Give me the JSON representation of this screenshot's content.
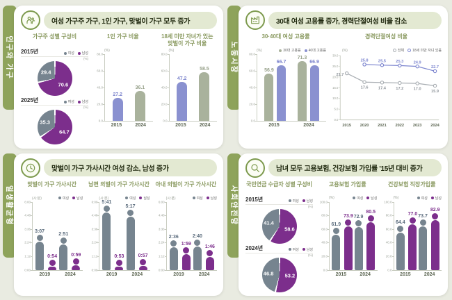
{
  "colors": {
    "page_bg": "#e9ebe1",
    "panel_bg": "#ffffff",
    "tab_green": "#8ea35b",
    "pill_bg": "#e3e9d2",
    "title_text": "#20290f",
    "chart_title": "#88985e",
    "purple": "#7c2e8c",
    "slate": "#76848f",
    "periwinkle": "#8a91d0",
    "sage": "#a9b29c",
    "line_gray": "#a8adb2",
    "line_blue": "#7d86cf",
    "axis": "#c8ccc0",
    "tick_text": "#9aa096",
    "x_label": "#5c6652",
    "icon_green": "#7d9a4e"
  },
  "panels": [
    {
      "id": "population",
      "side_label": "인구와 가구",
      "icon": "family-icon",
      "title": "여성 가구주 가구, 1인 가구, 맞벌이 가구 모두 증가",
      "chart_ids": [
        0,
        1,
        2
      ]
    },
    {
      "id": "labor",
      "side_label": "노동시장",
      "icon": "factory-icon",
      "title": "30대 여성 고용률 증가, 경력단절여성 비율 감소",
      "chart_ids": [
        3,
        4
      ]
    },
    {
      "id": "worklife",
      "side_label": "일생활균형",
      "icon": "clock-24-icon",
      "title": "맞벌이 가구 가사시간 여성 감소, 남성 증가",
      "chart_ids": [
        5,
        6,
        7
      ]
    },
    {
      "id": "safetynet",
      "side_label": "사회안전망",
      "icon": "magnifier-icon",
      "title": "남녀 모두 고용보험, 건강보험 가입률 '15년 대비 증가",
      "chart_ids": [
        8,
        9,
        10
      ]
    }
  ],
  "chart_data": [
    {
      "type": "pie_pair",
      "title": "가구주 성별 구성비",
      "unit": "(%)",
      "pies": [
        {
          "year": "2015년",
          "slices": [
            {
              "name": "여성",
              "value": 29.4,
              "label": "29.4",
              "color": "slate"
            },
            {
              "name": "남성",
              "value": 70.6,
              "label": "70.6",
              "color": "purple"
            }
          ]
        },
        {
          "year": "2025년",
          "slices": [
            {
              "name": "여성",
              "value": 35.3,
              "label": "35.3",
              "color": "slate"
            },
            {
              "name": "남성",
              "value": 64.7,
              "label": "64.7",
              "color": "purple"
            }
          ]
        }
      ]
    },
    {
      "type": "bar",
      "title": "1인 가구 비율",
      "unit": "(%)",
      "y_max": 80,
      "y_ticks": [
        "80.0",
        "60.0",
        "40.0",
        "20.0",
        "0.0"
      ],
      "bars": [
        {
          "category": "2015",
          "value": 27.2,
          "label": "27.2",
          "color": "periwinkle"
        },
        {
          "category": "2024",
          "value": 36.1,
          "label": "36.1",
          "color": "sage"
        }
      ]
    },
    {
      "type": "bar",
      "title": "18세 미만 자녀가 있는\n맞벌이 가구 비율",
      "unit": "(%)",
      "y_max": 80,
      "y_ticks": [
        "80.0",
        "60.0",
        "40.0",
        "20.0",
        "0.0"
      ],
      "bars": [
        {
          "category": "2015",
          "value": 47.2,
          "label": "47.2",
          "color": "periwinkle"
        },
        {
          "category": "2024",
          "value": 58.5,
          "label": "58.5",
          "color": "sage"
        }
      ]
    },
    {
      "type": "grouped_bar",
      "title": "30·40대 여성 고용률",
      "unit": "(%)",
      "y_max": 80,
      "y_ticks": [
        "80.0",
        "60.0",
        "40.0",
        "20.0",
        "0.0"
      ],
      "categories": [
        "2015",
        "2024"
      ],
      "series": [
        {
          "name": "30대 고용률",
          "color": "sage",
          "values": [
            56.9,
            71.3
          ],
          "labels": [
            "56.9",
            "71.3"
          ]
        },
        {
          "name": "40대 고용률",
          "color": "periwinkle",
          "values": [
            66.7,
            66.9
          ],
          "labels": [
            "66.7",
            "66.9"
          ]
        }
      ]
    },
    {
      "type": "line",
      "title": "경력단절여성 비율",
      "unit": "(%)",
      "y_max": 30,
      "y_ticks": [
        "30.0",
        "25.0",
        "20.0",
        "15.0",
        "10.0",
        "5.0",
        "0.0"
      ],
      "categories": [
        "2015",
        "2020",
        "2021",
        "2022",
        "2023",
        "2024"
      ],
      "series": [
        {
          "name": "전체",
          "color": "line_gray",
          "label_pos": "below",
          "values": [
            21.7,
            17.6,
            17.4,
            17.2,
            17.0,
            15.9
          ],
          "labels": [
            "21.7",
            "17.6",
            "17.4",
            "17.2",
            "17.0",
            "15.9"
          ]
        },
        {
          "name": "18세 미만 자녀 있음",
          "color": "line_blue",
          "label_pos": "above",
          "values": [
            null,
            25.8,
            25.5,
            25.3,
            24.9,
            22.7
          ],
          "labels": [
            null,
            "25.8",
            "25.5",
            "25.3",
            "24.9",
            "22.7"
          ]
        }
      ]
    },
    {
      "type": "person_bar",
      "title": "맞벌이 가구 가사시간",
      "unit": "(시:분)",
      "y_max": 360,
      "y_ticks": [
        "6:00",
        "4:48",
        "3:36",
        "2:24",
        "1:12",
        "0:00"
      ],
      "categories": [
        "2019",
        "2024"
      ],
      "series": [
        {
          "name": "여성",
          "color": "slate",
          "values": [
            187,
            171
          ],
          "labels": [
            "3:07",
            "2:51"
          ]
        },
        {
          "name": "남성",
          "color": "purple",
          "values": [
            54,
            59
          ],
          "labels": [
            "0:54",
            "0:59"
          ]
        }
      ]
    },
    {
      "type": "person_bar",
      "title": "남편 외벌이 가구 가사시간",
      "unit": "(시:분)",
      "y_max": 360,
      "y_ticks": [
        "6:00",
        "4:48",
        "3:36",
        "2:24",
        "1:12",
        "0:00"
      ],
      "categories": [
        "2019",
        "2024"
      ],
      "series": [
        {
          "name": "여성",
          "color": "slate",
          "values": [
            341,
            317
          ],
          "labels": [
            "5:41",
            "5:17"
          ]
        },
        {
          "name": "남성",
          "color": "purple",
          "values": [
            53,
            57
          ],
          "labels": [
            "0:53",
            "0:57"
          ]
        }
      ]
    },
    {
      "type": "person_bar",
      "title": "아내 외벌이 가구 가사시간",
      "unit": "(시:분)",
      "y_max": 360,
      "y_ticks": [
        "6:00",
        "4:48",
        "3:36",
        "2:24",
        "1:12",
        "0:00"
      ],
      "categories": [
        "2019",
        "2024"
      ],
      "series": [
        {
          "name": "여성",
          "color": "slate",
          "values": [
            156,
            160
          ],
          "labels": [
            "2:36",
            "2:40"
          ]
        },
        {
          "name": "남성",
          "color": "purple",
          "values": [
            119,
            106
          ],
          "labels": [
            "1:59",
            "1:46"
          ]
        }
      ]
    },
    {
      "type": "pie_pair",
      "title": "국민연금 수급자 성별 구성비",
      "unit": "(%)",
      "pies": [
        {
          "year": "2015년",
          "slices": [
            {
              "name": "여성",
              "value": 41.4,
              "label": "41.4",
              "color": "slate"
            },
            {
              "name": "남성",
              "value": 58.6,
              "label": "58.6",
              "color": "purple"
            }
          ]
        },
        {
          "year": "2024년",
          "slices": [
            {
              "name": "여성",
              "value": 46.8,
              "label": "46.8",
              "color": "slate"
            },
            {
              "name": "남성",
              "value": 53.2,
              "label": "53.2",
              "color": "purple"
            }
          ]
        }
      ]
    },
    {
      "type": "person_bar",
      "title": "고용보험 가입률",
      "unit": "(%)",
      "y_max": 100,
      "y_ticks": [
        "100.0",
        "80.0",
        "60.0",
        "40.0",
        "20.0",
        "0.0"
      ],
      "categories": [
        "2015",
        "2024"
      ],
      "series": [
        {
          "name": "여성",
          "color": "slate",
          "values": [
            61.9,
            72.9
          ],
          "labels": [
            "61.9",
            "72.9"
          ]
        },
        {
          "name": "남성",
          "color": "purple",
          "values": [
            73.9,
            80.5
          ],
          "labels": [
            "73.9",
            "80.5"
          ]
        }
      ]
    },
    {
      "type": "person_bar",
      "title": "건강보험 직장가입률",
      "unit": "(%)",
      "y_max": 100,
      "y_ticks": [
        "100.0",
        "80.0",
        "60.0",
        "40.0",
        "20.0",
        "0.0"
      ],
      "categories": [
        "2015",
        "2024"
      ],
      "series": [
        {
          "name": "여성",
          "color": "slate",
          "values": [
            64.4,
            73.7
          ],
          "labels": [
            "64.4",
            "73.7"
          ]
        },
        {
          "name": "남성",
          "color": "purple",
          "values": [
            77.0,
            82.9
          ],
          "labels": [
            "77.0",
            "82.9"
          ]
        }
      ]
    }
  ]
}
